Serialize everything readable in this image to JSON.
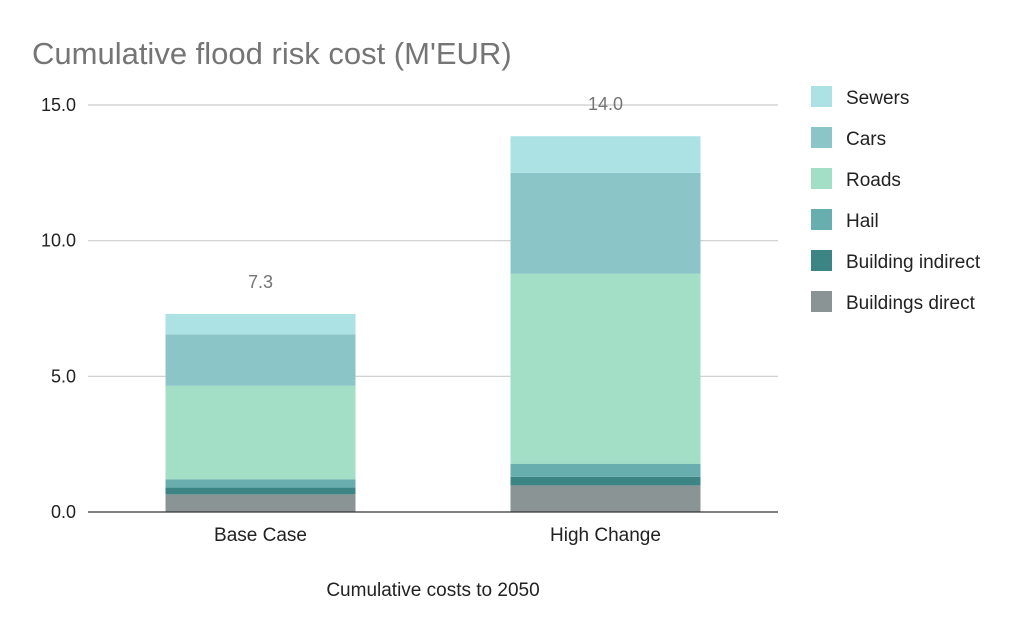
{
  "chart_data": {
    "type": "bar",
    "stacked": true,
    "title": "Cumulative flood risk cost (M'EUR)",
    "xlabel": "Cumulative costs to 2050",
    "ylabel": "",
    "ylim": [
      0,
      15
    ],
    "yticks": [
      "0.0",
      "5.0",
      "10.0",
      "15.0"
    ],
    "ytick_values": [
      0,
      5,
      10,
      15
    ],
    "categories": [
      "Base Case",
      "High Change"
    ],
    "totals": [
      "7.3",
      "14.0"
    ],
    "legend_position": "right",
    "series": [
      {
        "name": "Buildings direct",
        "color": "#8a9494",
        "values": [
          0.65,
          0.98
        ]
      },
      {
        "name": "Building indirect",
        "color": "#3d8585",
        "values": [
          0.25,
          0.32
        ]
      },
      {
        "name": "Hail",
        "color": "#69aeae",
        "values": [
          0.3,
          0.48
        ]
      },
      {
        "name": "Roads",
        "color": "#a3dec6",
        "values": [
          3.45,
          7.0
        ]
      },
      {
        "name": "Cars",
        "color": "#8bc5c8",
        "values": [
          1.9,
          3.72
        ]
      },
      {
        "name": "Sewers",
        "color": "#ade2e5",
        "values": [
          0.75,
          1.35
        ]
      }
    ]
  }
}
